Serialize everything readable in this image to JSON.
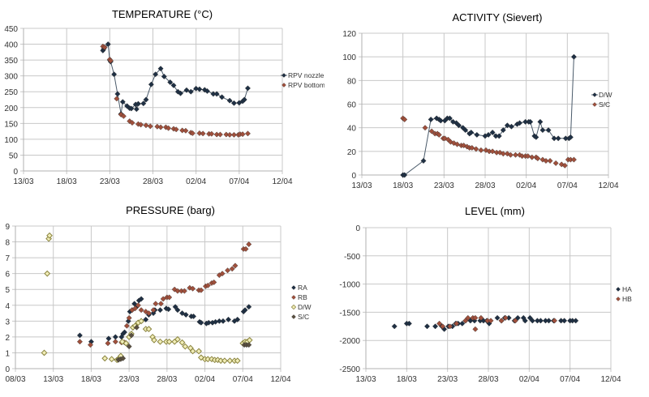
{
  "chart_data": [
    {
      "id": "temperature",
      "type": "line",
      "title": "TEMPERATURE  (°C)",
      "xlabel": "",
      "ylabel": "",
      "x_unit": "days since 13/03",
      "xlim": [
        0,
        30
      ],
      "ylim": [
        0,
        450
      ],
      "y_ticks": [
        0,
        50,
        100,
        150,
        200,
        250,
        300,
        350,
        400,
        450
      ],
      "x_ticks": [
        {
          "v": 0,
          "label": "13/03"
        },
        {
          "v": 5,
          "label": "18/03"
        },
        {
          "v": 10,
          "label": "23/03"
        },
        {
          "v": 15,
          "label": "28/03"
        },
        {
          "v": 20,
          "label": "02/04"
        },
        {
          "v": 25,
          "label": "07/04"
        },
        {
          "v": 30,
          "label": "12/04"
        }
      ],
      "grid": true,
      "legend": "right",
      "series": [
        {
          "name": "RPV nozzle",
          "color": "#1f3044",
          "line": true,
          "marker": "diamond",
          "x": [
            9.2,
            9.3,
            9.4,
            9.8,
            10.0,
            10.1,
            10.5,
            10.9,
            11.3,
            11.5,
            12.0,
            12.3,
            12.5,
            13.0,
            13.1,
            13.3,
            13.9,
            14.2,
            14.8,
            15.3,
            15.9,
            16.3,
            17.0,
            17.4,
            17.9,
            18.2,
            18.9,
            19.4,
            20.0,
            20.4,
            21.0,
            21.3,
            22.0,
            22.4,
            23.0,
            23.9,
            24.4,
            25.0,
            25.4,
            25.6,
            26.0
          ],
          "y": [
            380,
            385,
            390,
            400,
            350,
            345,
            305,
            243,
            180,
            218,
            205,
            198,
            197,
            210,
            195,
            212,
            213,
            225,
            273,
            305,
            323,
            298,
            280,
            270,
            250,
            245,
            255,
            250,
            260,
            258,
            256,
            252,
            243,
            243,
            233,
            222,
            214,
            215,
            220,
            225,
            261
          ]
        },
        {
          "name": "RPV bottom",
          "color": "#a0503c",
          "line": false,
          "marker": "diamond",
          "x": [
            9.2,
            9.4,
            10.0,
            10.1,
            10.8,
            11.3,
            11.6,
            12.3,
            12.6,
            13.3,
            13.6,
            14.2,
            14.7,
            15.5,
            15.9,
            16.5,
            16.8,
            17.4,
            17.7,
            18.4,
            18.8,
            19.4,
            19.6,
            20.4,
            20.8,
            21.5,
            21.8,
            22.4,
            22.8,
            23.5,
            23.9,
            24.4,
            24.9,
            25.1,
            25.4,
            26.0
          ],
          "y": [
            393,
            390,
            352,
            348,
            228,
            178,
            173,
            157,
            152,
            148,
            146,
            144,
            141,
            140,
            138,
            138,
            135,
            133,
            131,
            128,
            127,
            121,
            119,
            119,
            118,
            117,
            117,
            115,
            115,
            115,
            114,
            114,
            114,
            116,
            116,
            118
          ]
        }
      ]
    },
    {
      "id": "activity",
      "type": "line",
      "title": "ACTIVITY (Sievert)",
      "xlabel": "",
      "ylabel": "",
      "x_unit": "days since 13/03",
      "xlim": [
        0,
        30
      ],
      "ylim": [
        0,
        120
      ],
      "y_ticks": [
        0,
        20,
        40,
        60,
        80,
        100,
        120
      ],
      "x_ticks": [
        {
          "v": 0,
          "label": "13/03"
        },
        {
          "v": 5,
          "label": "18/03"
        },
        {
          "v": 10,
          "label": "23/03"
        },
        {
          "v": 15,
          "label": "28/03"
        },
        {
          "v": 20,
          "label": "02/04"
        },
        {
          "v": 25,
          "label": "07/04"
        },
        {
          "v": 30,
          "label": "12/04"
        }
      ],
      "grid": true,
      "legend": "right",
      "series": [
        {
          "name": "D/W",
          "color": "#1f3044",
          "line": true,
          "marker": "diamond",
          "x": [
            5.0,
            5.2,
            7.5,
            8.4,
            9.1,
            9.4,
            9.6,
            10.1,
            10.4,
            10.7,
            11.1,
            11.5,
            11.8,
            12.3,
            12.6,
            13.1,
            13.3,
            14.0,
            15.0,
            15.4,
            15.9,
            16.3,
            16.7,
            17.2,
            17.7,
            18.2,
            18.9,
            19.2,
            19.9,
            20.3,
            20.5,
            21.0,
            21.2,
            21.7,
            22.0,
            22.7,
            23.4,
            23.9,
            24.8,
            25.2,
            25.4,
            25.8
          ],
          "y": [
            0,
            0,
            12,
            47,
            48,
            47,
            46,
            46,
            48,
            48,
            45,
            44,
            42,
            40,
            38,
            35,
            36,
            34,
            33,
            34,
            36,
            33,
            33,
            38,
            42,
            41,
            43,
            44,
            45,
            45,
            45,
            33,
            32,
            45,
            38,
            38,
            31,
            31,
            31,
            31,
            32,
            100
          ]
        },
        {
          "name": "S/C",
          "color": "#a0503c",
          "line": false,
          "marker": "diamond",
          "x": [
            5.0,
            5.2,
            7.7,
            8.5,
            8.9,
            9.2,
            9.4,
            9.9,
            10.1,
            10.5,
            10.8,
            11.2,
            11.6,
            12.1,
            12.4,
            12.8,
            13.1,
            13.4,
            13.9,
            14.5,
            15.1,
            15.5,
            15.9,
            16.4,
            16.8,
            17.2,
            17.7,
            18.1,
            18.7,
            19.2,
            19.5,
            19.9,
            20.2,
            20.7,
            21.2,
            21.4,
            22.0,
            22.4,
            22.9,
            23.6,
            24.3,
            24.7,
            25.1,
            25.4,
            25.8
          ],
          "y": [
            48,
            47,
            40,
            37,
            35,
            35,
            34,
            31,
            31,
            30,
            28,
            27,
            26,
            25,
            25,
            24,
            23,
            23,
            22,
            21,
            21,
            20,
            20,
            19,
            19,
            18,
            18,
            17,
            17,
            17,
            16,
            16,
            16,
            15,
            15,
            14,
            13,
            12,
            12,
            10,
            9,
            8,
            13,
            13,
            13
          ]
        }
      ]
    },
    {
      "id": "pressure",
      "type": "scatter",
      "title": "PRESSURE (barg)",
      "xlabel": "",
      "ylabel": "",
      "x_unit": "days since 13/03",
      "xlim": [
        -5,
        30
      ],
      "ylim": [
        0,
        9
      ],
      "y_ticks": [
        0,
        1,
        2,
        3,
        4,
        5,
        6,
        7,
        8,
        9
      ],
      "x_ticks": [
        {
          "v": -5,
          "label": "08/03"
        },
        {
          "v": 0,
          "label": "13/03"
        },
        {
          "v": 5,
          "label": "18/03"
        },
        {
          "v": 10,
          "label": "23/03"
        },
        {
          "v": 15,
          "label": "28/03"
        },
        {
          "v": 20,
          "label": "02/04"
        },
        {
          "v": 25,
          "label": "07/04"
        },
        {
          "v": 30,
          "label": "12/04"
        }
      ],
      "grid": true,
      "legend": "right",
      "series": [
        {
          "name": "RA",
          "color": "#1f3044",
          "marker": "diamond",
          "x": [
            3.5,
            5.0,
            7.3,
            8.2,
            9.0,
            9.2,
            9.4,
            9.9,
            10.1,
            10.4,
            10.7,
            11.0,
            11.3,
            11.6,
            12.2,
            12.6,
            13.2,
            13.4,
            14.1,
            14.9,
            15.2,
            16.1,
            16.4,
            17.0,
            17.5,
            18.2,
            18.5,
            19.3,
            19.5,
            20.2,
            20.5,
            21.0,
            21.4,
            21.9,
            22.4,
            23.1,
            23.9,
            24.3,
            25.1,
            25.3,
            25.8
          ],
          "y": [
            2.1,
            1.7,
            1.9,
            2.0,
            2.0,
            2.2,
            2.3,
            3.0,
            3.6,
            3.7,
            4.1,
            3.9,
            4.3,
            4.4,
            3.1,
            3.4,
            3.5,
            3.7,
            3.7,
            3.8,
            3.75,
            3.9,
            3.7,
            3.5,
            3.4,
            3.3,
            3.3,
            2.95,
            2.9,
            2.85,
            2.9,
            2.9,
            2.95,
            3.0,
            3.0,
            3.1,
            3.0,
            3.1,
            3.6,
            3.7,
            3.9
          ]
        },
        {
          "name": "RB",
          "color": "#a0503c",
          "marker": "diamond",
          "x": [
            3.5,
            4.9,
            7.2,
            8.2,
            9.0,
            9.4,
            9.7,
            10.0,
            10.4,
            10.8,
            11.2,
            11.6,
            12.2,
            12.6,
            13.2,
            13.5,
            14.2,
            14.5,
            15.0,
            15.3,
            16.0,
            16.4,
            16.9,
            17.3,
            18.0,
            18.4,
            19.2,
            19.5,
            20.1,
            20.4,
            20.9,
            21.2,
            21.9,
            22.3,
            23.0,
            23.6,
            24.0,
            25.1,
            25.4,
            25.8
          ],
          "y": [
            1.7,
            1.5,
            1.6,
            1.7,
            1.65,
            1.65,
            2.7,
            3.2,
            3.7,
            3.8,
            4.0,
            3.7,
            3.6,
            3.5,
            3.7,
            4.1,
            4.1,
            4.4,
            4.5,
            4.5,
            5.0,
            4.9,
            4.9,
            4.9,
            5.1,
            5.05,
            4.95,
            4.95,
            5.2,
            5.25,
            5.4,
            5.45,
            5.9,
            6.0,
            6.2,
            6.3,
            6.5,
            7.55,
            7.55,
            7.85
          ]
        },
        {
          "name": "D/W",
          "color": "#d8d07a",
          "marker": "diamond-open",
          "x": [
            -1.2,
            -0.8,
            -0.6,
            -0.5,
            6.8,
            7.7,
            8.4,
            8.6,
            8.8,
            8.9,
            9.1,
            9.6,
            10.0,
            10.3,
            10.5,
            10.8,
            11.2,
            11.6,
            12.2,
            12.6,
            13.1,
            13.3,
            14.1,
            14.9,
            15.3,
            16.0,
            16.4,
            17.0,
            17.4,
            18.1,
            18.4,
            19.2,
            19.5,
            20.0,
            20.4,
            20.9,
            21.3,
            21.7,
            22.1,
            22.6,
            23.3,
            23.9,
            24.3,
            25.0,
            25.3,
            25.6,
            25.9
          ],
          "y": [
            1.0,
            6.0,
            8.2,
            8.4,
            0.65,
            0.6,
            0.55,
            0.6,
            0.7,
            0.8,
            1.7,
            1.6,
            2.0,
            2.2,
            2.6,
            2.7,
            2.9,
            3.0,
            2.5,
            2.5,
            2.0,
            1.8,
            1.7,
            1.7,
            1.7,
            1.7,
            1.85,
            1.65,
            1.4,
            1.3,
            1.1,
            1.1,
            0.7,
            0.6,
            0.6,
            0.6,
            0.55,
            0.55,
            0.5,
            0.5,
            0.5,
            0.5,
            0.5,
            1.6,
            1.7,
            1.7,
            1.8
          ]
        },
        {
          "name": "S/C",
          "color": "#5a5040",
          "marker": "diamond",
          "x": [
            8.6,
            8.9,
            9.2,
            10.0,
            10.3,
            11.0,
            25.2,
            25.5,
            25.8
          ],
          "y": [
            0.55,
            0.6,
            0.65,
            1.4,
            2.1,
            2.6,
            1.5,
            1.5,
            1.5
          ]
        }
      ]
    },
    {
      "id": "level",
      "type": "scatter",
      "title": "LEVEL (mm)",
      "xlabel": "",
      "ylabel": "",
      "x_unit": "days since 13/03",
      "xlim": [
        0,
        30
      ],
      "ylim": [
        -2500,
        0
      ],
      "y_ticks": [
        -2500,
        -2000,
        -1500,
        -1000,
        -500,
        0
      ],
      "x_ticks": [
        {
          "v": 0,
          "label": "13/03"
        },
        {
          "v": 5,
          "label": "18/03"
        },
        {
          "v": 10,
          "label": "23/03"
        },
        {
          "v": 15,
          "label": "28/03"
        },
        {
          "v": 20,
          "label": "02/04"
        },
        {
          "v": 25,
          "label": "07/04"
        },
        {
          "v": 30,
          "label": "12/04"
        }
      ],
      "grid": true,
      "legend": "right",
      "series": [
        {
          "name": "HA",
          "color": "#1f3044",
          "marker": "diamond",
          "x": [
            3.5,
            5.0,
            5.3,
            7.5,
            8.5,
            9.3,
            9.6,
            10.1,
            10.6,
            11.0,
            11.3,
            11.8,
            12.2,
            12.8,
            13.3,
            14.0,
            14.4,
            14.8,
            15.1,
            16.1,
            16.6,
            17.0,
            17.5,
            18.2,
            18.6,
            19.3,
            19.5,
            20.1,
            20.4,
            21.0,
            21.4,
            22.0,
            22.4,
            23.0,
            23.9,
            24.3,
            25.0,
            25.3,
            25.7
          ],
          "y": [
            -1750,
            -1700,
            -1700,
            -1750,
            -1750,
            -1750,
            -1800,
            -1750,
            -1750,
            -1700,
            -1700,
            -1700,
            -1650,
            -1650,
            -1650,
            -1650,
            -1650,
            -1650,
            -1700,
            -1600,
            -1650,
            -1600,
            -1600,
            -1650,
            -1600,
            -1600,
            -1650,
            -1600,
            -1650,
            -1650,
            -1650,
            -1650,
            -1650,
            -1650,
            -1650,
            -1650,
            -1650,
            -1650,
            -1650
          ]
        },
        {
          "name": "HB",
          "color": "#a0503c",
          "marker": "diamond",
          "x": [
            9.0,
            9.4,
            10.3,
            11.1,
            12.2,
            12.5,
            13.1,
            13.4,
            13.4,
            14.1,
            14.9,
            15.3,
            16.6,
            17.1,
            18.3,
            23.1
          ],
          "y": [
            -1700,
            -1750,
            -1750,
            -1700,
            -1650,
            -1600,
            -1600,
            -1600,
            -1800,
            -1600,
            -1650,
            -1650,
            -1650,
            -1600,
            -1650,
            -1650
          ]
        }
      ]
    }
  ]
}
